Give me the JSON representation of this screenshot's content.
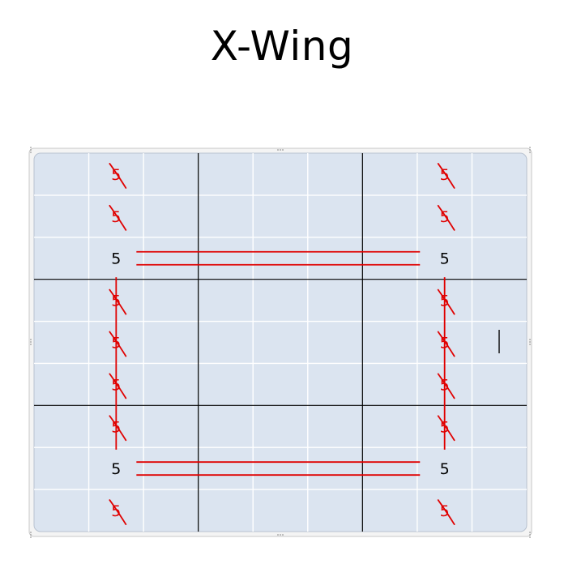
{
  "title": "X-Wing",
  "grid": {
    "rows": 9,
    "cols": 9,
    "box_size": 3,
    "bg_color": "#dbe4f0",
    "thin_line_color": "#ffffff",
    "thick_line_color": "#000000",
    "frame_color": "#c8c8c8"
  },
  "mark_color": "#e00000",
  "digit": "5",
  "cells": [
    {
      "row": 1,
      "col": 2,
      "value": "5",
      "struck": true
    },
    {
      "row": 2,
      "col": 2,
      "value": "5",
      "struck": true
    },
    {
      "row": 3,
      "col": 2,
      "value": "5",
      "struck": false
    },
    {
      "row": 4,
      "col": 2,
      "value": "5",
      "struck": true
    },
    {
      "row": 5,
      "col": 2,
      "value": "5",
      "struck": true
    },
    {
      "row": 6,
      "col": 2,
      "value": "5",
      "struck": true
    },
    {
      "row": 7,
      "col": 2,
      "value": "5",
      "struck": true
    },
    {
      "row": 8,
      "col": 2,
      "value": "5",
      "struck": false
    },
    {
      "row": 9,
      "col": 2,
      "value": "5",
      "struck": true
    },
    {
      "row": 1,
      "col": 8,
      "value": "5",
      "struck": true
    },
    {
      "row": 2,
      "col": 8,
      "value": "5",
      "struck": true
    },
    {
      "row": 3,
      "col": 8,
      "value": "5",
      "struck": false
    },
    {
      "row": 4,
      "col": 8,
      "value": "5",
      "struck": true
    },
    {
      "row": 5,
      "col": 8,
      "value": "5",
      "struck": true
    },
    {
      "row": 6,
      "col": 8,
      "value": "5",
      "struck": true
    },
    {
      "row": 7,
      "col": 8,
      "value": "5",
      "struck": true
    },
    {
      "row": 8,
      "col": 8,
      "value": "5",
      "struck": false
    },
    {
      "row": 9,
      "col": 8,
      "value": "5",
      "struck": true
    }
  ],
  "wing_rows": [
    3,
    8
  ],
  "wing_cols": [
    2,
    8
  ]
}
